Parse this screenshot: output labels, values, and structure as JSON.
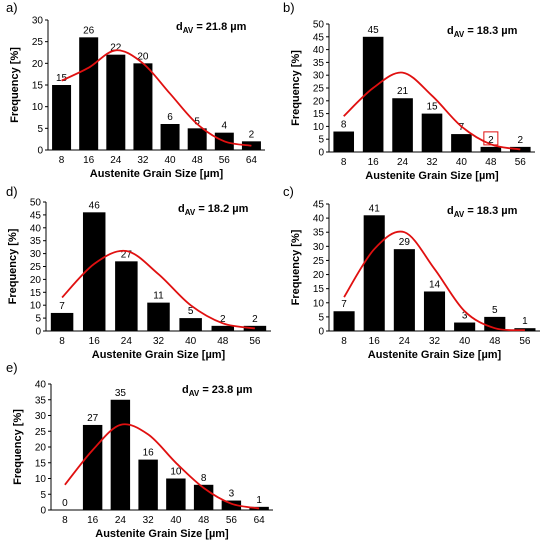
{
  "chart_data": [
    {
      "panel": "a)",
      "type": "bar",
      "categories": [
        "8",
        "16",
        "24",
        "32",
        "40",
        "48",
        "56",
        "64"
      ],
      "values": [
        15,
        26,
        22,
        20,
        6,
        5,
        4,
        2
      ],
      "fit_curve": [
        16,
        19,
        23,
        20,
        13,
        6,
        2,
        1
      ],
      "curve_color": "#e01010",
      "bar_color": "#000000",
      "annotation_prefix": "d",
      "annotation_sub": "AV",
      "annotation_value": " = 21.8 µm",
      "xlabel": "Austenite Grain Size [µm]",
      "ylabel": "Frequency [%]",
      "ylim": [
        0,
        30
      ],
      "yticks": [
        "0",
        "5",
        "10",
        "15",
        "20",
        "25",
        "30"
      ]
    },
    {
      "panel": "b)",
      "type": "bar",
      "categories": [
        "8",
        "16",
        "24",
        "32",
        "40",
        "48",
        "56"
      ],
      "values": [
        8,
        45,
        21,
        15,
        7,
        2,
        2
      ],
      "fit_curve": [
        14,
        25,
        31,
        22,
        10,
        3,
        1
      ],
      "curve_color": "#e01010",
      "bar_color": "#000000",
      "boxed_label_index": 5,
      "annotation_prefix": "d",
      "annotation_sub": "AV",
      "annotation_value": " = 18.3 µm",
      "xlabel": "Austenite Grain Size [µm]",
      "ylabel": "Frequency [%]",
      "ylim": [
        0,
        50
      ],
      "yticks": [
        "0",
        "5",
        "10",
        "15",
        "20",
        "25",
        "30",
        "35",
        "40",
        "45",
        "50"
      ]
    },
    {
      "panel": "d)",
      "type": "bar",
      "categories": [
        "8",
        "16",
        "24",
        "32",
        "40",
        "48",
        "56"
      ],
      "values": [
        7,
        46,
        27,
        11,
        5,
        2,
        2
      ],
      "fit_curve": [
        13,
        26,
        31,
        22,
        10,
        3,
        1
      ],
      "curve_color": "#e01010",
      "bar_color": "#000000",
      "annotation_prefix": "d",
      "annotation_sub": "AV",
      "annotation_value": " = 18.2 µm",
      "xlabel": "Austenite Grain Size [µm]",
      "ylabel": "Frequency [%]",
      "ylim": [
        0,
        50
      ],
      "yticks": [
        "0",
        "5",
        "10",
        "15",
        "20",
        "25",
        "30",
        "35",
        "40",
        "45",
        "50"
      ]
    },
    {
      "panel": "c)",
      "type": "bar",
      "categories": [
        "8",
        "16",
        "24",
        "32",
        "40",
        "48",
        "56"
      ],
      "values": [
        7,
        41,
        29,
        14,
        3,
        5,
        1
      ],
      "fit_curve": [
        12,
        29,
        35,
        22,
        7,
        1,
        0.3
      ],
      "curve_color": "#e01010",
      "bar_color": "#000000",
      "annotation_prefix": "d",
      "annotation_sub": "AV",
      "annotation_value": " = 18.3 µm",
      "xlabel": "Austenite Grain Size [µm]",
      "ylabel": "Frequency [%]",
      "ylim": [
        0,
        45
      ],
      "yticks": [
        "0",
        "5",
        "10",
        "15",
        "20",
        "25",
        "30",
        "35",
        "40",
        "45"
      ]
    },
    {
      "panel": "e)",
      "type": "bar",
      "categories": [
        "8",
        "16",
        "24",
        "32",
        "40",
        "48",
        "56",
        "64"
      ],
      "values": [
        0,
        27,
        35,
        16,
        10,
        8,
        3,
        1
      ],
      "fit_curve": [
        8,
        19,
        27,
        24,
        15,
        7,
        2,
        0.5
      ],
      "curve_color": "#e01010",
      "bar_color": "#000000",
      "annotation_prefix": "d",
      "annotation_sub": "AV",
      "annotation_value": " = 23.8 µm",
      "xlabel": "Austenite Grain Size [µm]",
      "ylabel": "Frequency [%]",
      "ylim": [
        0,
        40
      ],
      "yticks": [
        "0",
        "5",
        "10",
        "15",
        "20",
        "25",
        "30",
        "35",
        "40"
      ]
    }
  ]
}
